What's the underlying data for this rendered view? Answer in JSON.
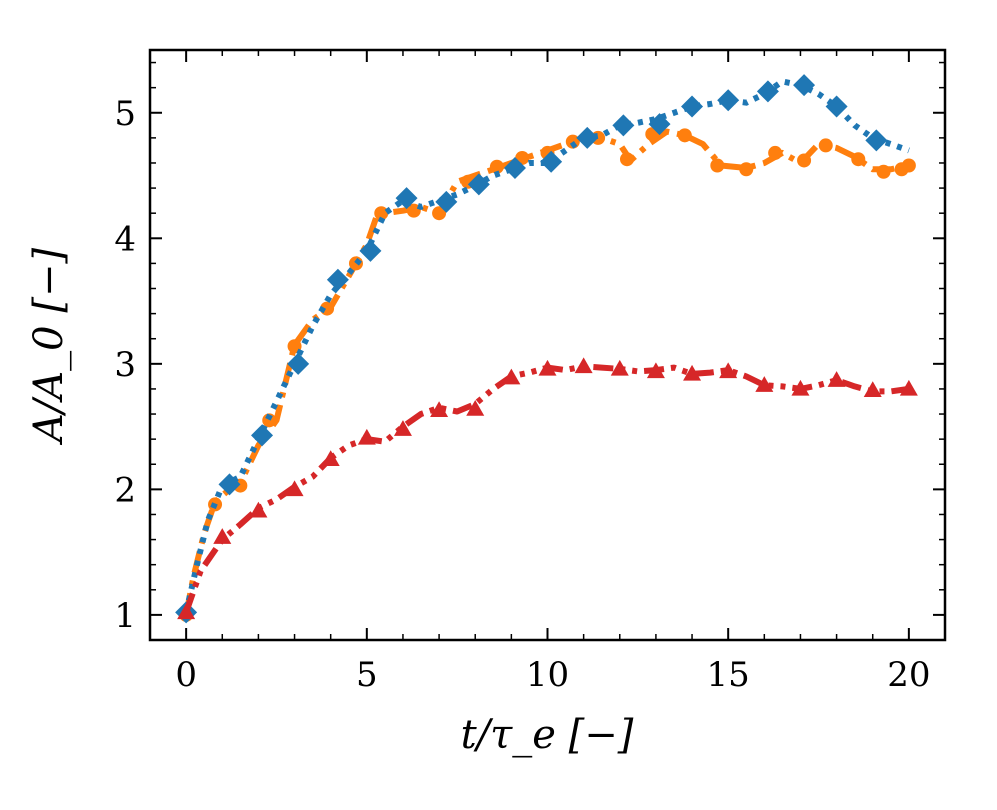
{
  "chart_data": {
    "type": "line",
    "title": "",
    "xlabel": "t/τ_e [−]",
    "ylabel": "A/A_0 [−]",
    "xlim": [
      -1,
      21
    ],
    "ylim": [
      0.8,
      5.5
    ],
    "xticks": [
      0,
      5,
      10,
      15,
      20
    ],
    "yticks": [
      1,
      2,
      3,
      4,
      5
    ],
    "xtick_labels": [
      "0",
      "5",
      "10",
      "15",
      "20"
    ],
    "ytick_labels": [
      "1",
      "2",
      "3",
      "4",
      "5"
    ],
    "grid": false,
    "series": [
      {
        "name": "orange-circles",
        "color": "#ff7f0e",
        "marker": "circle",
        "linestyle": "dashdot",
        "points": [
          [
            0,
            1.0
          ],
          [
            0.2,
            1.3
          ],
          [
            0.5,
            1.65
          ],
          [
            0.8,
            1.9
          ],
          [
            1.2,
            2.0
          ],
          [
            1.5,
            2.05
          ],
          [
            2.0,
            2.35
          ],
          [
            2.5,
            2.55
          ],
          [
            3.0,
            3.15
          ],
          [
            3.5,
            3.35
          ],
          [
            4.0,
            3.45
          ],
          [
            4.5,
            3.7
          ],
          [
            4.8,
            3.85
          ],
          [
            5.0,
            3.95
          ],
          [
            5.3,
            4.2
          ],
          [
            5.5,
            4.2
          ],
          [
            6.0,
            4.22
          ],
          [
            6.5,
            4.25
          ],
          [
            7.0,
            4.2
          ],
          [
            7.5,
            4.45
          ],
          [
            8.0,
            4.5
          ],
          [
            8.5,
            4.55
          ],
          [
            9.0,
            4.6
          ],
          [
            9.5,
            4.65
          ],
          [
            10.0,
            4.7
          ],
          [
            10.5,
            4.75
          ],
          [
            11.0,
            4.8
          ],
          [
            11.5,
            4.8
          ],
          [
            12.0,
            4.75
          ],
          [
            12.3,
            4.62
          ],
          [
            12.8,
            4.75
          ],
          [
            13.3,
            4.85
          ],
          [
            13.8,
            4.82
          ],
          [
            14.3,
            4.75
          ],
          [
            14.8,
            4.58
          ],
          [
            15.5,
            4.56
          ],
          [
            16.0,
            4.6
          ],
          [
            16.5,
            4.68
          ],
          [
            17.0,
            4.6
          ],
          [
            17.5,
            4.75
          ],
          [
            18.0,
            4.72
          ],
          [
            18.5,
            4.65
          ],
          [
            19.0,
            4.55
          ],
          [
            19.5,
            4.55
          ],
          [
            20.0,
            4.58
          ]
        ],
        "marker_points": [
          [
            0,
            1.0
          ],
          [
            0.8,
            1.88
          ],
          [
            1.5,
            2.03
          ],
          [
            2.3,
            2.55
          ],
          [
            3.0,
            3.14
          ],
          [
            3.9,
            3.44
          ],
          [
            4.7,
            3.8
          ],
          [
            5.4,
            4.2
          ],
          [
            6.3,
            4.22
          ],
          [
            7.0,
            4.2
          ],
          [
            7.8,
            4.45
          ],
          [
            8.6,
            4.57
          ],
          [
            9.3,
            4.64
          ],
          [
            10.0,
            4.68
          ],
          [
            10.7,
            4.77
          ],
          [
            11.4,
            4.8
          ],
          [
            12.2,
            4.63
          ],
          [
            12.9,
            4.83
          ],
          [
            13.8,
            4.82
          ],
          [
            14.7,
            4.58
          ],
          [
            15.5,
            4.55
          ],
          [
            16.3,
            4.68
          ],
          [
            17.1,
            4.62
          ],
          [
            17.7,
            4.74
          ],
          [
            18.6,
            4.63
          ],
          [
            19.3,
            4.53
          ],
          [
            19.8,
            4.55
          ],
          [
            20.0,
            4.58
          ]
        ]
      },
      {
        "name": "blue-diamonds",
        "color": "#1f77b4",
        "marker": "diamond",
        "linestyle": "dotted",
        "points": [
          [
            0,
            1.02
          ],
          [
            0.3,
            1.4
          ],
          [
            0.6,
            1.75
          ],
          [
            1.0,
            2.03
          ],
          [
            1.5,
            2.1
          ],
          [
            2.0,
            2.4
          ],
          [
            2.5,
            2.7
          ],
          [
            3.0,
            3.0
          ],
          [
            3.5,
            3.3
          ],
          [
            4.0,
            3.55
          ],
          [
            4.5,
            3.72
          ],
          [
            5.0,
            3.9
          ],
          [
            5.5,
            4.2
          ],
          [
            6.0,
            4.3
          ],
          [
            6.5,
            4.25
          ],
          [
            7.0,
            4.3
          ],
          [
            7.5,
            4.35
          ],
          [
            8.0,
            4.42
          ],
          [
            8.5,
            4.5
          ],
          [
            9.0,
            4.55
          ],
          [
            9.5,
            4.6
          ],
          [
            10.0,
            4.6
          ],
          [
            10.5,
            4.7
          ],
          [
            11.0,
            4.8
          ],
          [
            11.5,
            4.82
          ],
          [
            12.0,
            4.9
          ],
          [
            12.5,
            4.92
          ],
          [
            13.0,
            4.95
          ],
          [
            13.5,
            5.0
          ],
          [
            14.0,
            5.05
          ],
          [
            14.5,
            5.07
          ],
          [
            15.0,
            5.1
          ],
          [
            15.5,
            5.08
          ],
          [
            16.0,
            5.15
          ],
          [
            16.5,
            5.25
          ],
          [
            17.0,
            5.22
          ],
          [
            17.5,
            5.15
          ],
          [
            18.0,
            5.05
          ],
          [
            18.5,
            4.9
          ],
          [
            19.0,
            4.8
          ],
          [
            19.5,
            4.75
          ],
          [
            20.0,
            4.7
          ]
        ],
        "marker_points": [
          [
            0,
            1.02
          ],
          [
            1.2,
            2.04
          ],
          [
            2.1,
            2.43
          ],
          [
            3.1,
            3.0
          ],
          [
            4.2,
            3.67
          ],
          [
            5.1,
            3.9
          ],
          [
            6.1,
            4.32
          ],
          [
            7.2,
            4.29
          ],
          [
            8.1,
            4.43
          ],
          [
            9.1,
            4.56
          ],
          [
            10.1,
            4.61
          ],
          [
            11.1,
            4.8
          ],
          [
            12.1,
            4.9
          ],
          [
            13.1,
            4.91
          ],
          [
            14.0,
            5.05
          ],
          [
            15.0,
            5.1
          ],
          [
            16.1,
            5.17
          ],
          [
            17.1,
            5.22
          ],
          [
            18.0,
            5.05
          ],
          [
            19.1,
            4.78
          ]
        ]
      },
      {
        "name": "red-triangles",
        "color": "#d62728",
        "marker": "triangle",
        "linestyle": "dashdotdot",
        "points": [
          [
            0,
            1.02
          ],
          [
            0.4,
            1.35
          ],
          [
            1.0,
            1.6
          ],
          [
            1.5,
            1.72
          ],
          [
            2.0,
            1.85
          ],
          [
            2.5,
            1.92
          ],
          [
            3.0,
            2.02
          ],
          [
            3.5,
            2.1
          ],
          [
            4.0,
            2.25
          ],
          [
            4.5,
            2.35
          ],
          [
            5.0,
            2.4
          ],
          [
            5.5,
            2.38
          ],
          [
            6.0,
            2.5
          ],
          [
            6.5,
            2.6
          ],
          [
            7.0,
            2.65
          ],
          [
            7.5,
            2.62
          ],
          [
            8.0,
            2.68
          ],
          [
            8.5,
            2.8
          ],
          [
            9.0,
            2.9
          ],
          [
            9.5,
            2.93
          ],
          [
            10.0,
            2.97
          ],
          [
            10.5,
            2.95
          ],
          [
            11.0,
            2.98
          ],
          [
            11.5,
            2.97
          ],
          [
            12.0,
            2.96
          ],
          [
            12.5,
            2.94
          ],
          [
            13.0,
            2.95
          ],
          [
            13.5,
            2.97
          ],
          [
            14.0,
            2.92
          ],
          [
            14.5,
            2.93
          ],
          [
            15.0,
            2.95
          ],
          [
            15.5,
            2.9
          ],
          [
            16.0,
            2.83
          ],
          [
            16.5,
            2.82
          ],
          [
            17.0,
            2.8
          ],
          [
            17.5,
            2.83
          ],
          [
            18.0,
            2.87
          ],
          [
            18.5,
            2.82
          ],
          [
            19.0,
            2.78
          ],
          [
            19.5,
            2.78
          ],
          [
            20.0,
            2.8
          ]
        ],
        "marker_points": [
          [
            0,
            1.02
          ],
          [
            1.0,
            1.62
          ],
          [
            2.0,
            1.83
          ],
          [
            3.0,
            2.0
          ],
          [
            4.0,
            2.24
          ],
          [
            5.0,
            2.41
          ],
          [
            6.0,
            2.48
          ],
          [
            7.0,
            2.63
          ],
          [
            8.0,
            2.64
          ],
          [
            9.0,
            2.89
          ],
          [
            10.0,
            2.96
          ],
          [
            11.0,
            2.98
          ],
          [
            12.0,
            2.96
          ],
          [
            13.0,
            2.94
          ],
          [
            14.0,
            2.92
          ],
          [
            15.0,
            2.94
          ],
          [
            16.0,
            2.83
          ],
          [
            17.0,
            2.8
          ],
          [
            18.0,
            2.87
          ],
          [
            19.0,
            2.79
          ],
          [
            20.0,
            2.8
          ]
        ]
      }
    ]
  }
}
